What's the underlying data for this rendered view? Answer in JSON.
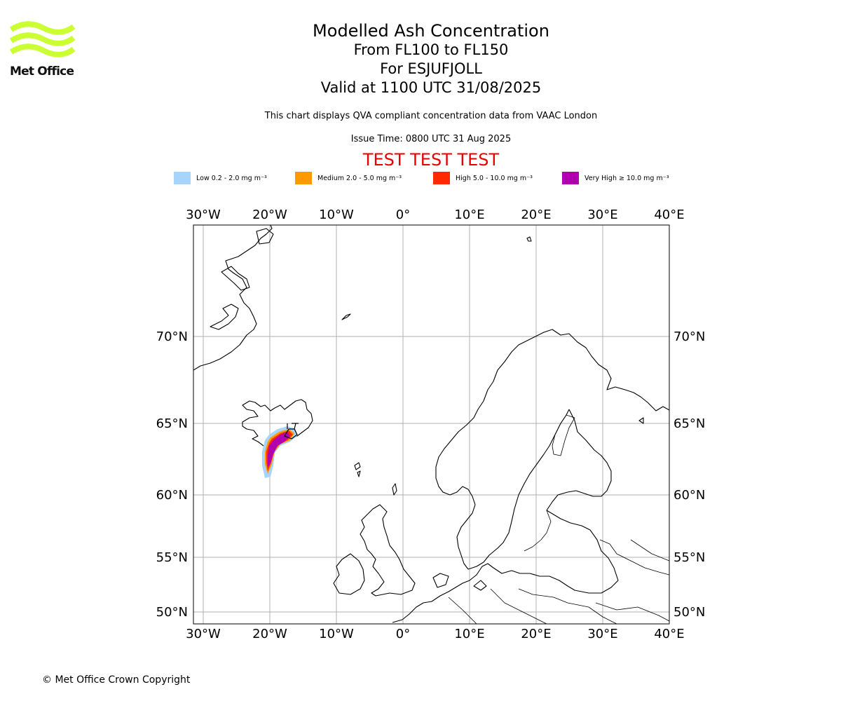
{
  "brand": {
    "name": "Met Office",
    "color": "#ccff33"
  },
  "title": {
    "line1": "Modelled Ash Concentration",
    "line2": "From FL100 to FL150",
    "line3": "For ESJUFJOLL",
    "line4": "Valid at 1100 UTC 31/08/2025"
  },
  "subtitle": "This chart displays QVA compliant concentration data from VAAC London",
  "issue_time": "Issue Time: 0800 UTC 31 Aug 2025",
  "banner": "TEST TEST TEST",
  "legend": [
    {
      "label": "Low 0.2 - 2.0 mg m⁻³",
      "color": "#a6d4fa"
    },
    {
      "label": "Medium 2.0 - 5.0 mg m⁻³",
      "color": "#ff9900"
    },
    {
      "label": "High 5.0 - 10.0 mg m⁻³",
      "color": "#ff2a00"
    },
    {
      "label": "Very High ≥ 10.0 mg m⁻³",
      "color": "#b000b0"
    }
  ],
  "map": {
    "lon_ticks": [
      "30°W",
      "20°W",
      "10°W",
      "0°",
      "10°E",
      "20°E",
      "30°E",
      "40°E"
    ],
    "lat_ticks": [
      "70°N",
      "65°N",
      "60°N",
      "55°N",
      "50°N"
    ],
    "lon_range": [
      -31.5,
      40
    ],
    "lat_range": [
      49.5,
      78
    ]
  },
  "copyright": "© Met Office Crown Copyright"
}
